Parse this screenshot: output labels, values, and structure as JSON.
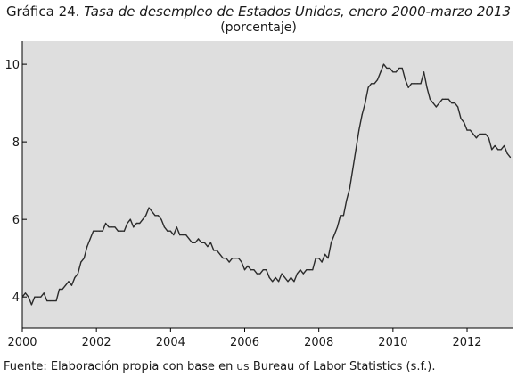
{
  "figure": {
    "label": "Gráfica 24.",
    "title": "Tasa de desempleo de Estados Unidos, enero 2000-marzo 2013",
    "subtitle": "(porcentaje)",
    "source_prefix": "Fuente: Elaboración propia con base en",
    "source_us": "US",
    "source_suffix": "Bureau of Labor Statistics (s.f.)."
  },
  "colors": {
    "plot_bg": "#dedede",
    "line": "#2b2b2b",
    "axis": "#000000"
  },
  "chart_data": {
    "type": "line",
    "title": "Tasa de desempleo de Estados Unidos, enero 2000-marzo 2013",
    "subtitle": "(porcentaje)",
    "xlabel": "",
    "ylabel": "",
    "xlim": [
      2000,
      2013.25
    ],
    "ylim": [
      3.2,
      10.6
    ],
    "x_ticks": [
      2000,
      2002,
      2004,
      2006,
      2008,
      2010,
      2012
    ],
    "x_tick_labels": [
      "2000",
      "2002",
      "2004",
      "2006",
      "2008",
      "2010",
      "2012"
    ],
    "y_ticks": [
      4,
      6,
      8,
      10
    ],
    "y_tick_labels": [
      "4",
      "6",
      "8",
      "10"
    ],
    "grid": false,
    "legend": "none",
    "series": [
      {
        "start": "2000-01",
        "frequency": "monthly",
        "values": [
          4.0,
          4.1,
          4.0,
          3.8,
          4.0,
          4.0,
          4.0,
          4.1,
          3.9,
          3.9,
          3.9,
          3.9,
          4.2,
          4.2,
          4.3,
          4.4,
          4.3,
          4.5,
          4.6,
          4.9,
          5.0,
          5.3,
          5.5,
          5.7,
          5.7,
          5.7,
          5.7,
          5.9,
          5.8,
          5.8,
          5.8,
          5.7,
          5.7,
          5.7,
          5.9,
          6.0,
          5.8,
          5.9,
          5.9,
          6.0,
          6.1,
          6.3,
          6.2,
          6.1,
          6.1,
          6.0,
          5.8,
          5.7,
          5.7,
          5.6,
          5.8,
          5.6,
          5.6,
          5.6,
          5.5,
          5.4,
          5.4,
          5.5,
          5.4,
          5.4,
          5.3,
          5.4,
          5.2,
          5.2,
          5.1,
          5.0,
          5.0,
          4.9,
          5.0,
          5.0,
          5.0,
          4.9,
          4.7,
          4.8,
          4.7,
          4.7,
          4.6,
          4.6,
          4.7,
          4.7,
          4.5,
          4.4,
          4.5,
          4.4,
          4.6,
          4.5,
          4.4,
          4.5,
          4.4,
          4.6,
          4.7,
          4.6,
          4.7,
          4.7,
          4.7,
          5.0,
          5.0,
          4.9,
          5.1,
          5.0,
          5.4,
          5.6,
          5.8,
          6.1,
          6.1,
          6.5,
          6.8,
          7.3,
          7.8,
          8.3,
          8.7,
          9.0,
          9.4,
          9.5,
          9.5,
          9.6,
          9.8,
          10.0,
          9.9,
          9.9,
          9.8,
          9.8,
          9.9,
          9.9,
          9.6,
          9.4,
          9.5,
          9.5,
          9.5,
          9.5,
          9.8,
          9.4,
          9.1,
          9.0,
          8.9,
          9.0,
          9.1,
          9.1,
          9.1,
          9.0,
          9.0,
          8.9,
          8.6,
          8.5,
          8.3,
          8.3,
          8.2,
          8.1,
          8.2,
          8.2,
          8.2,
          8.1,
          7.8,
          7.9,
          7.8,
          7.8,
          7.9,
          7.7,
          7.6
        ]
      }
    ]
  }
}
